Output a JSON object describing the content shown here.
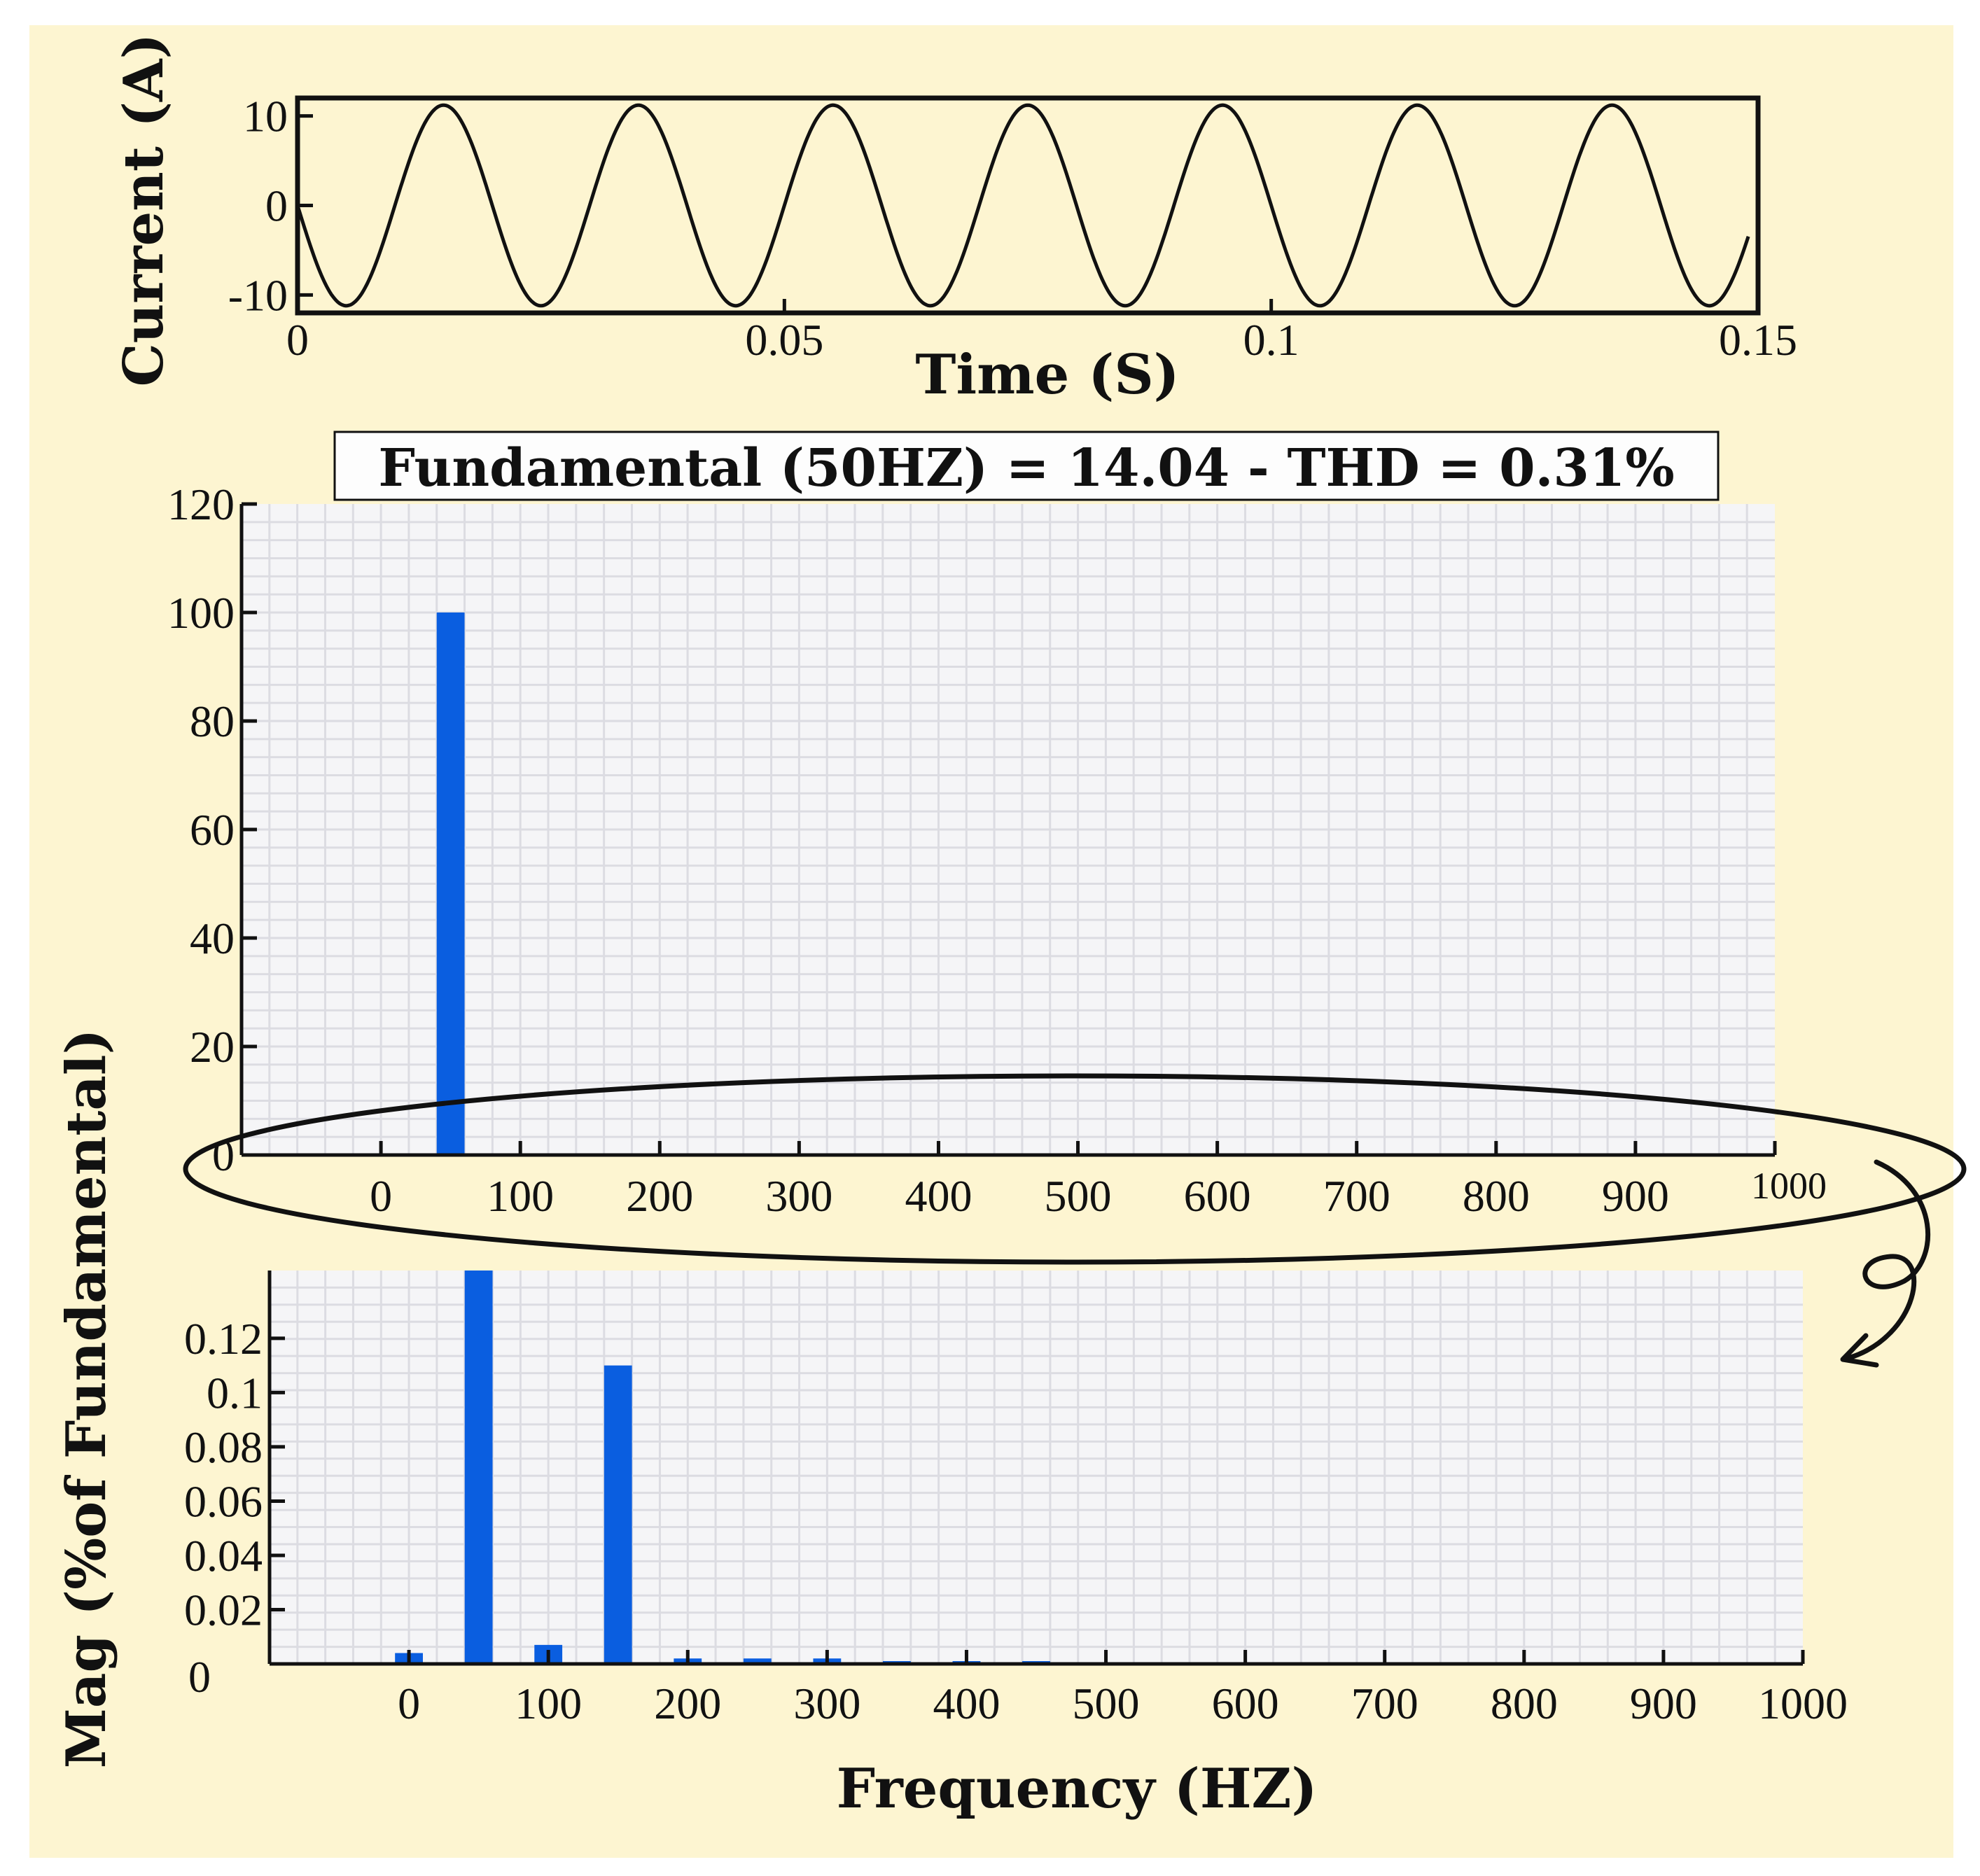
{
  "chart_data": [
    {
      "type": "line",
      "name": "current-waveform",
      "xlabel": "Time (S)",
      "ylabel": "Current (A)",
      "xlim": [
        0,
        0.15
      ],
      "ylim": [
        -12,
        12
      ],
      "x_ticks": [
        0,
        0.05,
        0.1,
        0.15
      ],
      "x_tick_labels": [
        "0",
        "0.05",
        "0.1",
        "0.15"
      ],
      "y_ticks": [
        10,
        0,
        -10
      ],
      "y_tick_labels": [
        "10",
        "0",
        "-10"
      ],
      "series": [
        {
          "name": "current",
          "frequency_hz": 50,
          "amplitude": 11.2,
          "phase_deg": 180,
          "t_start": 0,
          "t_end": 0.149
        }
      ]
    },
    {
      "type": "bar",
      "name": "harmonic-spectrum",
      "title": "Fundamental (50HZ) = 14.04 - THD = 0.31%",
      "xlim": [
        -100,
        1000
      ],
      "ylim": [
        0,
        120
      ],
      "x_ticks": [
        0,
        100,
        200,
        300,
        400,
        500,
        600,
        700,
        800,
        900,
        1000
      ],
      "x_tick_labels": [
        "0",
        "100",
        "200",
        "300",
        "400",
        "500",
        "600",
        "700",
        "800",
        "900",
        "1000"
      ],
      "y_ticks": [
        0,
        20,
        40,
        60,
        80,
        100,
        120
      ],
      "y_tick_labels": [
        "0",
        "20",
        "40",
        "60",
        "80",
        "100",
        "120"
      ],
      "bar_width_hz": 20,
      "x": [
        50
      ],
      "values": [
        100
      ],
      "bar_color": "#0a5ee0"
    },
    {
      "type": "bar",
      "name": "harmonic-spectrum-zoom",
      "xlabel": "Frequency (HZ)",
      "ylabel": "Mag (%of Fundamental)",
      "xlim": [
        -100,
        1000
      ],
      "ylim": [
        0,
        0.145
      ],
      "x_ticks": [
        0,
        100,
        200,
        300,
        400,
        500,
        600,
        700,
        800,
        900,
        1000
      ],
      "x_tick_labels": [
        "0",
        "100",
        "200",
        "300",
        "400",
        "500",
        "600",
        "700",
        "800",
        "900",
        "1000"
      ],
      "y_ticks": [
        0.02,
        0.04,
        0.06,
        0.08,
        0.1,
        0.12
      ],
      "y_tick_labels": [
        "0.02",
        "0.04",
        "0.06",
        "0.08",
        "0.1",
        "0.12"
      ],
      "zero_label": "0",
      "bar_width_hz": 20,
      "x": [
        0,
        50,
        100,
        150,
        200,
        250,
        300,
        350,
        400,
        450
      ],
      "values": [
        0.004,
        0.145,
        0.007,
        0.11,
        0.002,
        0.002,
        0.002,
        0.001,
        0.001,
        0.001
      ],
      "bar_color": "#0a5ee0"
    }
  ],
  "colors": {
    "background": "#fdf5d1",
    "grid_bg": "#f5f5f7",
    "grid_line": "#dcdce2",
    "bar": "#0a5ee0"
  }
}
